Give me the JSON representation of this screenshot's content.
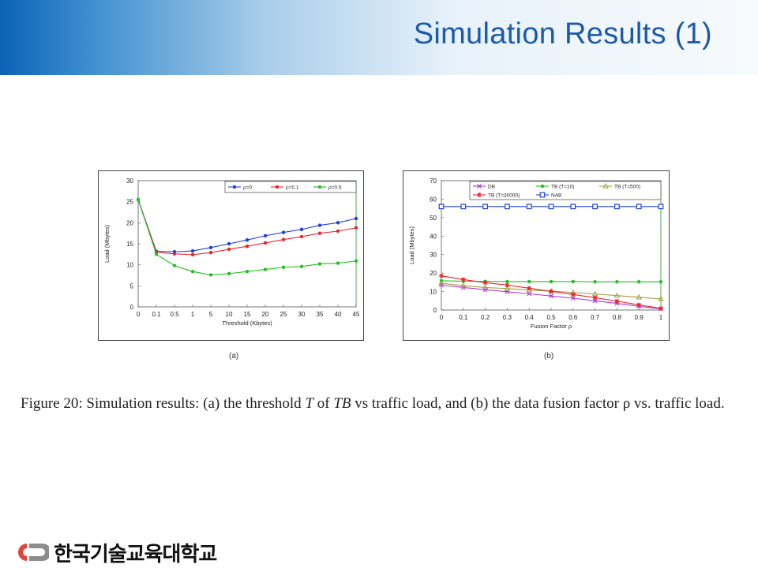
{
  "slide": {
    "title": "Simulation Results (1)",
    "caption": {
      "part1": "Figure 20: Simulation results: (a) the threshold ",
      "T": "T",
      "part2": " of ",
      "TB": "TB",
      "part3": " vs traffic load, and (b) the data fusion factor ρ vs. traffic load."
    },
    "footer_text": "한국기술교육대학교",
    "colors": {
      "header_blue": "#1d5aa8",
      "logo_red": "#e0473a",
      "logo_gray": "#8c8c8c"
    }
  },
  "chart_data": [
    {
      "type": "line",
      "sublabel": "(a)",
      "xlabel": "Threshold (Kbytes)",
      "ylabel": "Load (Mbytes)",
      "categories": [
        "0",
        "0.1",
        "0.5",
        "1",
        "5",
        "10",
        "15",
        "20",
        "25",
        "30",
        "35",
        "40",
        "45"
      ],
      "ylim": [
        0,
        30
      ],
      "yticks": [
        0,
        5,
        10,
        15,
        20,
        25,
        30
      ],
      "legend_position": "top-right",
      "grid": false,
      "series": [
        {
          "name": "ρ=0",
          "color": "#1f3fe0",
          "marker": "circle",
          "values": [
            25.5,
            13.2,
            13.1,
            13.3,
            14.1,
            15.0,
            15.9,
            16.9,
            17.7,
            18.4,
            19.4,
            20.0,
            21.0
          ]
        },
        {
          "name": "ρ=0.1",
          "color": "#e8252b",
          "marker": "circle",
          "values": [
            25.5,
            13.0,
            12.6,
            12.4,
            12.9,
            13.7,
            14.4,
            15.2,
            16.0,
            16.7,
            17.5,
            18.0,
            18.8
          ]
        },
        {
          "name": "ρ=0.5",
          "color": "#22c022",
          "marker": "circle",
          "values": [
            25.5,
            12.5,
            9.8,
            8.4,
            7.6,
            7.9,
            8.4,
            8.9,
            9.4,
            9.6,
            10.2,
            10.4,
            10.9
          ]
        }
      ]
    },
    {
      "type": "line",
      "sublabel": "(b)",
      "xlabel": "Fusion Factor ρ",
      "ylabel": "Load (Mbytes)",
      "x": [
        0,
        0.1,
        0.2,
        0.3,
        0.4,
        0.5,
        0.6,
        0.7,
        0.8,
        0.9,
        1
      ],
      "xticks": [
        "0",
        "0.1",
        "0.2",
        "0.3",
        "0.4",
        "0.5",
        "0.6",
        "0.7",
        "0.8",
        "0.9",
        "1"
      ],
      "ylim": [
        0,
        70
      ],
      "yticks": [
        0,
        10,
        20,
        30,
        40,
        50,
        60,
        70
      ],
      "legend_position": "top",
      "grid": false,
      "series": [
        {
          "name": "DB",
          "color": "#b03ad0",
          "marker": "x",
          "values": [
            13.5,
            12.2,
            11.0,
            9.9,
            8.8,
            7.6,
            6.4,
            5.0,
            3.6,
            2.0,
            0.6
          ]
        },
        {
          "name": "TB (T=10)",
          "color": "#22c022",
          "marker": "circle",
          "values": [
            15.8,
            15.6,
            15.5,
            15.4,
            15.4,
            15.4,
            15.4,
            15.3,
            15.3,
            15.3,
            15.3
          ]
        },
        {
          "name": "TB (T=500)",
          "color": "#a0a040",
          "marker": "triangle",
          "values": [
            14.5,
            13.2,
            12.2,
            11.6,
            10.8,
            10.2,
            9.5,
            8.7,
            7.8,
            6.9,
            6.0
          ]
        },
        {
          "name": "TB (T=30000)",
          "color": "#e8252b",
          "marker": "star",
          "values": [
            18.5,
            16.5,
            14.8,
            13.5,
            11.8,
            10.1,
            8.4,
            6.7,
            4.8,
            2.8,
            0.9
          ]
        },
        {
          "name": "NAB",
          "color": "#1f3fe0",
          "marker": "square",
          "values": [
            56,
            56,
            56,
            56,
            56,
            56,
            56,
            56,
            56,
            56,
            56
          ]
        }
      ]
    }
  ]
}
